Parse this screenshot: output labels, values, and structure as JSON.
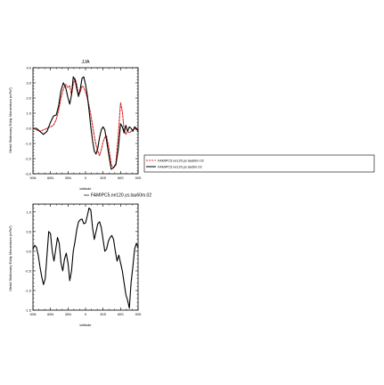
{
  "chart_data": [
    {
      "type": "line",
      "title": "JJA",
      "xlabel": "latitude",
      "ylabel": "Merid Stationary Eddy Momentum (m²/s²)",
      "xlim": [
        -90,
        90
      ],
      "ylim": [
        -3.0,
        4.0
      ],
      "x_ticks": [
        -90,
        -60,
        -30,
        0,
        30,
        60,
        90
      ],
      "x_tick_labels": [
        "90N",
        "60N",
        "30N",
        "0",
        "30S",
        "60S",
        "90S"
      ],
      "y_ticks": [
        -3.0,
        -2.0,
        -1.0,
        0.0,
        1.0,
        2.0,
        3.0,
        4.0
      ],
      "y_tick_labels": [
        "-3.0",
        "-2.0",
        "-1.0",
        "0.0",
        "1.0",
        "2.0",
        "3.0",
        "4.0"
      ],
      "legend_position": "right",
      "series": [
        {
          "name": "FAMIPC5.ne120.ys.tau60m.02",
          "color": "#d62728",
          "dashed": true,
          "x": [
            -90,
            -84,
            -78,
            -72,
            -66,
            -60,
            -55,
            -50,
            -46,
            -42,
            -38,
            -34,
            -30,
            -27,
            -24,
            -21,
            -18,
            -15,
            -12,
            -9,
            -6,
            -3,
            0,
            3,
            6,
            9,
            12,
            15,
            18,
            21,
            24,
            27,
            30,
            33,
            36,
            40,
            44,
            48,
            52,
            56,
            60,
            63,
            66,
            69,
            72,
            75,
            78,
            81,
            84,
            87,
            90
          ],
          "y": [
            0.0,
            -0.1,
            -0.2,
            -0.1,
            0.0,
            0.1,
            0.2,
            0.6,
            1.2,
            2.0,
            2.6,
            2.9,
            2.7,
            2.8,
            2.2,
            2.9,
            3.3,
            2.9,
            2.2,
            2.4,
            2.8,
            2.7,
            2.4,
            2.0,
            1.5,
            0.9,
            0.2,
            -0.5,
            -1.1,
            -1.5,
            -1.8,
            -1.4,
            -0.9,
            -0.6,
            -0.5,
            -1.3,
            -2.4,
            -2.6,
            -2.3,
            -0.5,
            1.7,
            1.1,
            -0.1,
            -0.4,
            -0.2,
            -0.3,
            -0.2,
            -0.1,
            0.0,
            -0.1,
            0.0
          ]
        },
        {
          "name": "FAMIPC5.ne120.ys.tau5m.02",
          "color": "#000000",
          "dashed": false,
          "x": [
            -90,
            -84,
            -78,
            -72,
            -66,
            -60,
            -55,
            -50,
            -46,
            -42,
            -38,
            -34,
            -30,
            -27,
            -24,
            -21,
            -18,
            -15,
            -12,
            -9,
            -6,
            -3,
            0,
            3,
            6,
            9,
            12,
            15,
            18,
            21,
            24,
            27,
            30,
            33,
            36,
            40,
            44,
            48,
            52,
            56,
            60,
            63,
            66,
            69,
            72,
            75,
            78,
            81,
            84,
            87,
            90
          ],
          "y": [
            0.0,
            0.0,
            -0.2,
            -0.4,
            -0.2,
            0.4,
            0.8,
            0.9,
            1.5,
            2.5,
            3.0,
            2.7,
            2.0,
            1.6,
            2.2,
            3.4,
            3.2,
            2.6,
            2.1,
            2.6,
            3.3,
            3.4,
            2.9,
            2.2,
            1.2,
            0.1,
            -0.8,
            -1.5,
            -1.7,
            -1.3,
            -0.6,
            -0.1,
            0.1,
            -0.1,
            -0.8,
            -1.8,
            -2.7,
            -2.6,
            -2.4,
            -1.4,
            0.3,
            0.1,
            -0.3,
            0.2,
            -0.2,
            0.1,
            0.0,
            -0.2,
            0.1,
            0.0,
            -0.2
          ]
        }
      ]
    },
    {
      "type": "line",
      "title": "",
      "xlabel": "latitude",
      "ylabel": "Merid Stationary Eddy Momentum (m²/s²)",
      "xlim": [
        -90,
        90
      ],
      "ylim": [
        -1.5,
        1.2
      ],
      "x_ticks": [
        -90,
        -60,
        -30,
        0,
        30,
        60,
        90
      ],
      "x_tick_labels": [
        "90N",
        "60N",
        "30N",
        "0",
        "30S",
        "60S",
        "90S"
      ],
      "y_ticks": [
        -1.5,
        -1.0,
        -0.5,
        0.0,
        0.5,
        1.0
      ],
      "y_tick_labels": [
        "-1.5",
        "-1.0",
        "-0.5",
        "0.0",
        "0.5",
        "1.0"
      ],
      "legend_position": "top",
      "series": [
        {
          "name": "FAMIPC5.ne120.ys.tau60m.02",
          "color": "#000000",
          "dashed": false,
          "x": [
            -90,
            -87,
            -84,
            -81,
            -78,
            -75,
            -72,
            -69,
            -66,
            -63,
            -60,
            -57,
            -54,
            -51,
            -48,
            -45,
            -42,
            -39,
            -36,
            -33,
            -30,
            -27,
            -24,
            -21,
            -18,
            -15,
            -12,
            -9,
            -6,
            -3,
            0,
            3,
            6,
            9,
            12,
            15,
            18,
            21,
            24,
            27,
            30,
            33,
            36,
            39,
            42,
            45,
            48,
            51,
            54,
            57,
            60,
            63,
            66,
            69,
            72,
            75,
            78,
            81,
            84,
            87,
            90
          ],
          "y": [
            0.05,
            0.15,
            0.1,
            -0.1,
            -0.4,
            -0.65,
            -0.85,
            -0.7,
            -0.1,
            0.5,
            0.45,
            0.0,
            -0.25,
            0.05,
            0.35,
            0.2,
            -0.3,
            -0.5,
            -0.2,
            -0.05,
            -0.3,
            -0.75,
            -0.5,
            0.0,
            0.25,
            0.55,
            0.75,
            0.8,
            0.82,
            0.7,
            0.72,
            0.9,
            1.1,
            1.05,
            0.6,
            0.3,
            0.5,
            0.7,
            0.75,
            0.6,
            0.3,
            0.0,
            0.05,
            0.25,
            0.35,
            0.4,
            0.3,
            0.0,
            -0.25,
            -0.1,
            -0.3,
            -0.5,
            -0.8,
            -1.1,
            -1.25,
            -1.45,
            -0.8,
            -0.4,
            0.05,
            0.2,
            0.1
          ]
        }
      ]
    }
  ]
}
